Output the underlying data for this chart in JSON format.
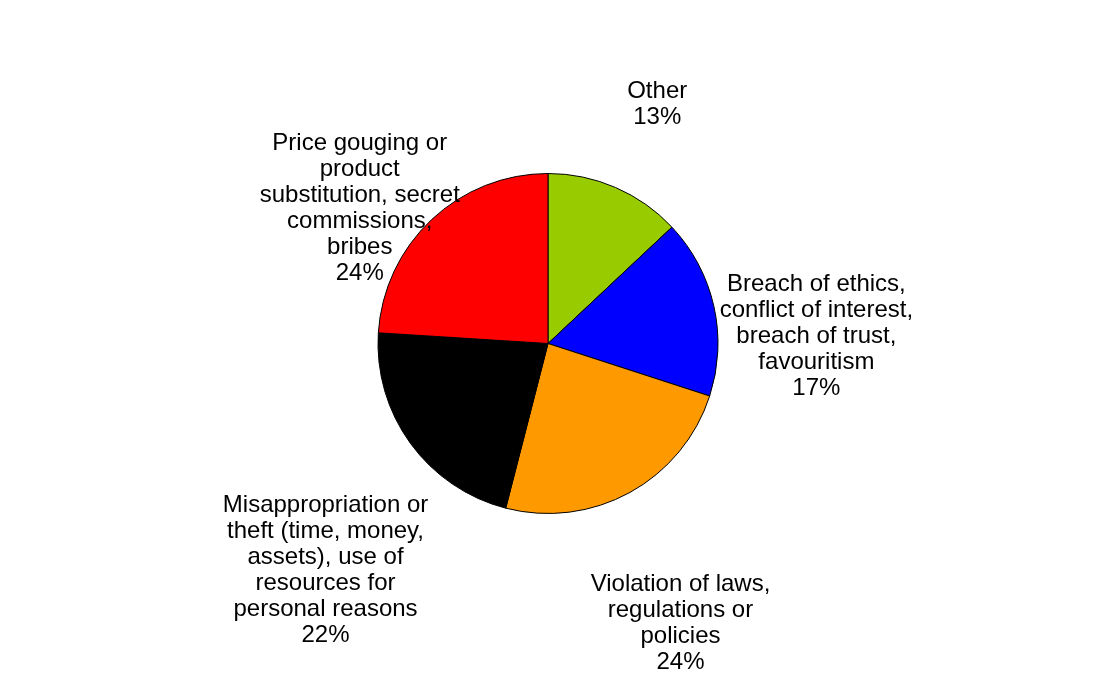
{
  "chart_data": {
    "type": "pie",
    "categories": [
      "Other",
      "Breach of ethics,\nconflict of interest,\nbreach of trust,\nfavouritism",
      "Violation of laws,\nregulations or\npolicies",
      "Misappropriation or\ntheft (time, money,\nassets), use of\nresources for\npersonal reasons",
      "Price gouging or\nproduct\nsubstitution, secret\ncommissions,\nbribes"
    ],
    "values": [
      13,
      17,
      24,
      22,
      24
    ],
    "value_labels": [
      "13%",
      "17%",
      "24%",
      "22%",
      "24%"
    ],
    "colors": [
      "#99cc00",
      "#0000ff",
      "#ff9900",
      "#000000",
      "#ff0000"
    ],
    "legend": false
  }
}
